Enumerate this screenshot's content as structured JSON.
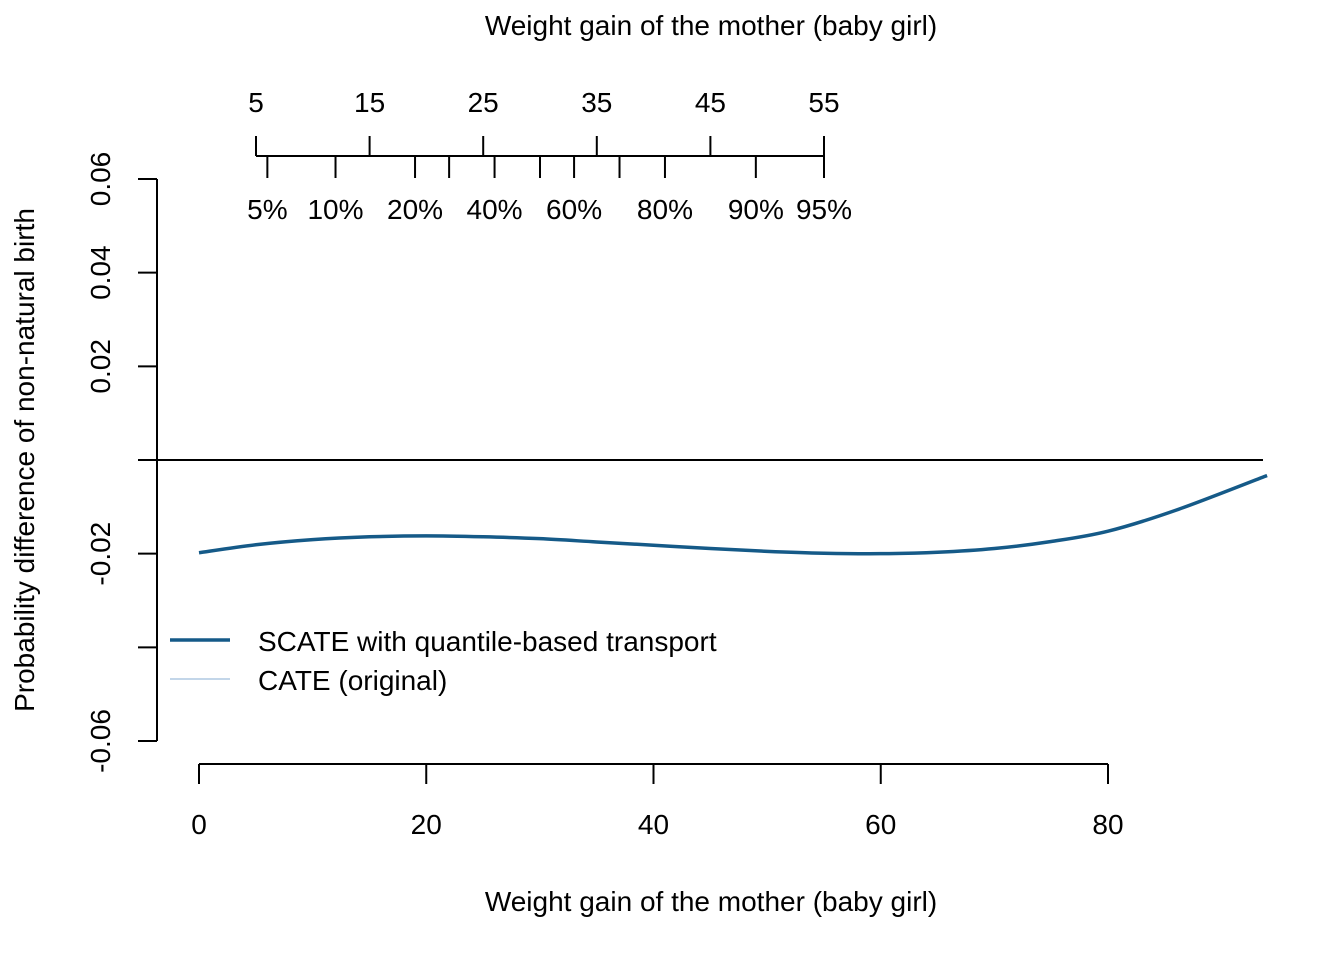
{
  "chart_data": {
    "type": "line",
    "top_title": "Weight gain of the mother (baby girl)",
    "xlabel": "Weight gain of the mother (baby girl)",
    "ylabel": "Probability difference of non-natural birth",
    "xlim": [
      0,
      94
    ],
    "ylim": [
      -0.06,
      0.06
    ],
    "x_ticks": [
      "0",
      "20",
      "40",
      "60",
      "80"
    ],
    "x_tick_values": [
      0,
      20,
      40,
      60,
      80
    ],
    "y_ticks": [
      "-0.06",
      "",
      "-0.02",
      "",
      "0.02",
      "0.04",
      "0.06"
    ],
    "y_tick_values": [
      -0.06,
      -0.04,
      -0.02,
      0,
      0.02,
      0.04,
      0.06
    ],
    "reference_line_y": 0,
    "top_axis": {
      "value_ticks": [
        "5",
        "15",
        "25",
        "35",
        "45",
        "55"
      ],
      "value_tick_values": [
        5,
        15,
        25,
        35,
        45,
        55
      ],
      "minor_tick_values": [
        22,
        30,
        37
      ],
      "quantile_labels": [
        "5%",
        "10%",
        "20%",
        "40%",
        "60%",
        "80%",
        "90%",
        "95%"
      ],
      "quantile_values": [
        6,
        12,
        19,
        26,
        33,
        41,
        49,
        55
      ]
    },
    "series": [
      {
        "name": "SCATE with quantile-based transport",
        "color": "#155a88",
        "x": [
          0,
          5,
          10,
          15,
          20,
          25,
          30,
          35,
          40,
          45,
          50,
          55,
          60,
          65,
          70,
          75,
          80,
          86,
          94
        ],
        "y": [
          -0.0198,
          -0.0181,
          -0.017,
          -0.0164,
          -0.0162,
          -0.0164,
          -0.0168,
          -0.0175,
          -0.0182,
          -0.0189,
          -0.0195,
          -0.0199,
          -0.02,
          -0.0197,
          -0.0189,
          -0.0174,
          -0.0152,
          -0.0107,
          -0.0033
        ]
      },
      {
        "name": "CATE (original)",
        "color": "#c3d6e9",
        "x": [],
        "y": []
      }
    ],
    "legend_position": "bottom-left"
  }
}
